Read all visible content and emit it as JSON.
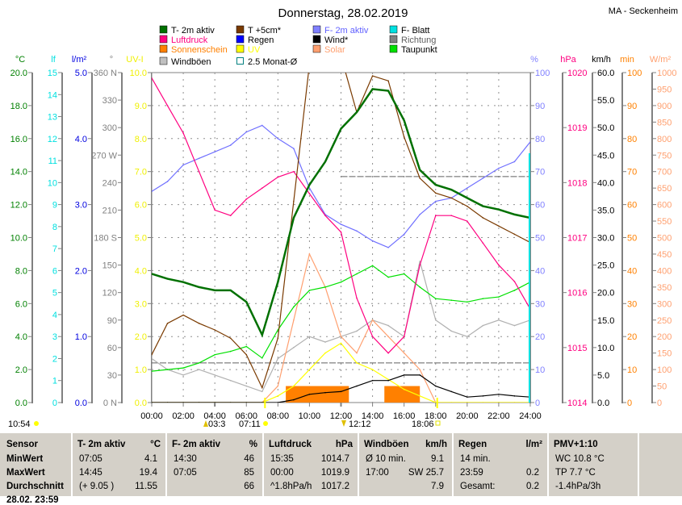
{
  "title": "Donnerstag, 28.02.2019",
  "station": "MA - Seckenheim",
  "legend": [
    {
      "label": "T- 2m aktiv",
      "color": "#007000",
      "type": "fill"
    },
    {
      "label": "T +5cm*",
      "color": "#7a3a00",
      "type": "fill"
    },
    {
      "label": "F- 2m aktiv",
      "color": "#8080ff",
      "type": "fill"
    },
    {
      "label": "F- Blatt",
      "color": "#00e0e0",
      "type": "fill"
    },
    {
      "label": "Luftdruck",
      "color": "#ff0080",
      "type": "fill"
    },
    {
      "label": "Regen",
      "color": "#0000ff",
      "type": "fill"
    },
    {
      "label": "Wind*",
      "color": "#000000",
      "type": "fill"
    },
    {
      "label": "Richtung",
      "color": "#808080",
      "type": "fill"
    },
    {
      "label": "Sonnenschein",
      "color": "#ff8000",
      "type": "fill"
    },
    {
      "label": "UV",
      "color": "#ffff00",
      "type": "fill"
    },
    {
      "label": "Solar",
      "color": "#ffa070",
      "type": "fill"
    },
    {
      "label": "Taupunkt",
      "color": "#00e000",
      "type": "fill"
    },
    {
      "label": "Windböen",
      "color": "#c0c0c0",
      "type": "fill"
    },
    {
      "label": "2.5 Monat-Ø",
      "color": "#008080",
      "type": "outline"
    }
  ],
  "chart_data": {
    "type": "line",
    "x": [
      "00:00",
      "01:00",
      "02:00",
      "03:00",
      "04:00",
      "05:00",
      "06:00",
      "07:00",
      "08:00",
      "09:00",
      "10:00",
      "11:00",
      "12:00",
      "13:00",
      "14:00",
      "15:00",
      "16:00",
      "17:00",
      "18:00",
      "19:00",
      "20:00",
      "21:00",
      "22:00",
      "23:00",
      "24:00"
    ],
    "x_ticks": [
      "00:00",
      "02:00",
      "04:00",
      "06:00",
      "08:00",
      "10:00",
      "12:00",
      "14:00",
      "16:00",
      "18:00",
      "20:00",
      "22:00",
      "24:00"
    ],
    "axes": [
      {
        "unit": "°C",
        "min": 0,
        "max": 20,
        "ticks": [
          "0.0",
          "2.0",
          "4.0",
          "6.0",
          "8.0",
          "10.0",
          "12.0",
          "14.0",
          "16.0",
          "18.0",
          "20.0"
        ],
        "color": "#008000",
        "side": "left"
      },
      {
        "unit": "lf",
        "min": 0,
        "max": 15,
        "ticks": [
          "0",
          "1",
          "2",
          "3",
          "4",
          "5",
          "6",
          "7",
          "8",
          "9",
          "10",
          "11",
          "12",
          "13",
          "14",
          "15"
        ],
        "color": "#00e0e0",
        "side": "left"
      },
      {
        "unit": "l/m²",
        "min": 0,
        "max": 5,
        "ticks": [
          "0.0",
          "1.0",
          "2.0",
          "3.0",
          "4.0",
          "5.0"
        ],
        "color": "#0000e0",
        "side": "left"
      },
      {
        "unit": "°",
        "min": 0,
        "max": 360,
        "ticks": [
          "0 N",
          "30",
          "60",
          "90",
          "120",
          "150",
          "180 S",
          "210",
          "240",
          "270 W",
          "300",
          "330",
          "360 N"
        ],
        "color": "#808080",
        "side": "left"
      },
      {
        "unit": "UV-I",
        "min": 0,
        "max": 10,
        "ticks": [
          "0.0",
          "1.0",
          "2.0",
          "3.0",
          "4.0",
          "5.0",
          "6.0",
          "7.0",
          "8.0",
          "9.0",
          "10.0"
        ],
        "color": "#ffff00",
        "side": "left"
      },
      {
        "unit": "%",
        "min": 0,
        "max": 100,
        "ticks": [
          "0",
          "10",
          "20",
          "30",
          "40",
          "50",
          "60",
          "70",
          "80",
          "90",
          "100"
        ],
        "color": "#8080ff",
        "side": "right"
      },
      {
        "unit": "hPa",
        "min": 1014,
        "max": 1020,
        "ticks": [
          "1014",
          "1015",
          "1016",
          "1017",
          "1018",
          "1019",
          "1020"
        ],
        "color": "#ff0080",
        "side": "right"
      },
      {
        "unit": "km/h",
        "min": 0,
        "max": 60,
        "ticks": [
          "0.0",
          "5.0",
          "10.0",
          "15.0",
          "20.0",
          "25.0",
          "30.0",
          "35.0",
          "40.0",
          "45.0",
          "50.0",
          "55.0",
          "60.0"
        ],
        "color": "#000000",
        "side": "right"
      },
      {
        "unit": "min",
        "min": 0,
        "max": 100,
        "ticks": [
          "0",
          "10",
          "20",
          "30",
          "40",
          "50",
          "60",
          "70",
          "80",
          "90",
          "100"
        ],
        "color": "#ff8000",
        "side": "right"
      },
      {
        "unit": "W/m²",
        "min": 0,
        "max": 1000,
        "ticks": [
          "0",
          "50",
          "100",
          "150",
          "200",
          "250",
          "300",
          "350",
          "400",
          "450",
          "500",
          "550",
          "600",
          "650",
          "700",
          "750",
          "800",
          "850",
          "900",
          "950",
          "1000"
        ],
        "color": "#ffa070",
        "side": "right"
      }
    ],
    "series": [
      {
        "name": "Windböen",
        "axis": "km/h",
        "color": "#b0b0b0",
        "values": [
          8,
          6,
          5,
          6,
          5,
          4,
          3,
          2,
          8,
          10,
          12,
          11,
          12,
          13,
          15,
          14,
          12,
          25.7,
          15,
          13,
          12,
          14,
          15,
          14,
          15
        ]
      },
      {
        "name": "Solar",
        "axis": "W/m²",
        "color": "#ffa070",
        "values": [
          0,
          0,
          0,
          0,
          0,
          0,
          0,
          0,
          50,
          250,
          450,
          350,
          200,
          150,
          250,
          200,
          150,
          100,
          0,
          0,
          0,
          0,
          0,
          0,
          0
        ]
      },
      {
        "name": "UV",
        "axis": "UV-I",
        "color": "#ffff00",
        "values": [
          0,
          0,
          0,
          0,
          0,
          0,
          0,
          0,
          0.2,
          0.5,
          1.0,
          1.5,
          1.8,
          1.2,
          1.0,
          0.7,
          0.4,
          0.2,
          0,
          0,
          0,
          0,
          0,
          0,
          0
        ]
      },
      {
        "name": "Taupunkt",
        "axis": "°C",
        "color": "#00e000",
        "values": [
          1.9,
          2.0,
          2.1,
          2.4,
          2.9,
          3.1,
          3.4,
          2.7,
          4.4,
          5.8,
          6.8,
          7.0,
          7.3,
          7.8,
          8.3,
          7.6,
          7.8,
          7.0,
          6.3,
          6.2,
          6.1,
          6.3,
          6.4,
          6.8,
          7.3
        ]
      },
      {
        "name": "F- 2m aktiv",
        "axis": "%",
        "color": "#7070ff",
        "values": [
          64,
          67,
          72,
          74,
          76,
          78,
          82,
          84,
          80,
          77,
          65,
          57,
          54,
          52,
          49,
          47,
          51,
          57,
          61,
          62,
          65,
          68,
          71,
          73,
          79
        ]
      },
      {
        "name": "Luftdruck",
        "axis": "hPa",
        "color": "#ff0080",
        "values": [
          1019.9,
          1019.4,
          1018.9,
          1018.2,
          1017.5,
          1017.4,
          1017.7,
          1017.9,
          1018.1,
          1018.2,
          1017.8,
          1017.4,
          1017.1,
          1015.9,
          1015.2,
          1014.9,
          1015.2,
          1016.5,
          1017.4,
          1017.4,
          1017.3,
          1016.9,
          1016.5,
          1016.2,
          1015.7
        ]
      },
      {
        "name": "T +5cm*",
        "axis": "°C",
        "color": "#7a3a00",
        "values": [
          2.9,
          4.8,
          5.3,
          4.8,
          4.4,
          3.9,
          2.9,
          0.9,
          3.9,
          12.2,
          20.5,
          21,
          21,
          17.6,
          19.8,
          19.5,
          16.1,
          13.6,
          12.7,
          12.4,
          11.9,
          11.2,
          10.7,
          10.2,
          9.7
        ]
      },
      {
        "name": "T- 2m aktiv",
        "axis": "°C",
        "color": "#007000",
        "values": [
          7.8,
          7.5,
          7.3,
          7.0,
          6.8,
          6.8,
          6.1,
          4.1,
          7.3,
          11.2,
          13.2,
          14.6,
          16.6,
          17.6,
          19.0,
          18.9,
          17.1,
          14.1,
          13.2,
          12.9,
          12.4,
          11.9,
          11.7,
          11.4,
          11.2
        ]
      },
      {
        "name": "Wind*",
        "axis": "km/h",
        "color": "#000000",
        "values": [
          0,
          0,
          0,
          0,
          0,
          0,
          0,
          0,
          0,
          0.5,
          1.5,
          1.8,
          2,
          3,
          4,
          4,
          5,
          5,
          3,
          2,
          1,
          1.2,
          1.5,
          1.2,
          1
        ]
      }
    ],
    "monthly_avg": {
      "axis": "°C",
      "values": [
        2.4,
        13.7
      ]
    },
    "sunshine_periods": [
      {
        "from": "08:30",
        "to": "12:30",
        "minutes": 5
      },
      {
        "from": "14:45",
        "to": "17:00",
        "minutes": 5
      }
    ]
  },
  "astro": {
    "current_time": "10:54",
    "moonrise": "03:3",
    "sunrise": "07:11",
    "moonset": "12:12",
    "sunset": "18:06"
  },
  "table": {
    "headers": [
      [
        "Sensor",
        ""
      ],
      [
        "T- 2m aktiv",
        "°C"
      ],
      [
        "F- 2m aktiv",
        "%"
      ],
      [
        "Luftdruck",
        "hPa"
      ],
      [
        "Windböen",
        "km/h"
      ],
      [
        "Regen",
        "l/m²"
      ],
      [
        "PMV+1:10",
        ""
      ]
    ],
    "rows": [
      {
        "label": "MinWert",
        "cells": [
          [
            "07:05",
            "4.1"
          ],
          [
            "14:30",
            "46"
          ],
          [
            "15:35",
            "1014.7"
          ],
          [
            "Ø 10 min.",
            "9.1"
          ],
          [
            "14 min.",
            ""
          ],
          [
            "WC 10.8 °C",
            ""
          ]
        ]
      },
      {
        "label": "MaxWert",
        "cells": [
          [
            "14:45",
            "19.4"
          ],
          [
            "07:05",
            "85"
          ],
          [
            "00:00",
            "1019.9"
          ],
          [
            "17:00",
            "SW 25.7"
          ],
          [
            "23:59",
            "0.2"
          ],
          [
            "TP 7.7 °C",
            ""
          ]
        ]
      },
      {
        "label": "Durchschnitt",
        "cells": [
          [
            "(+ 9.05 )",
            "11.55"
          ],
          [
            "",
            "66"
          ],
          [
            "^1.8hPa/h",
            "1017.2"
          ],
          [
            "",
            "7.9"
          ],
          [
            "Gesamt:",
            "0.2"
          ],
          [
            "-1.4hPa/3h",
            ""
          ]
        ]
      },
      {
        "label": "28.02. 23:59",
        "cells": [
          [
            "",
            ""
          ],
          [
            "",
            ""
          ],
          [
            "",
            ""
          ],
          [
            "",
            ""
          ],
          [
            "",
            ""
          ],
          [
            "",
            ""
          ]
        ]
      }
    ]
  }
}
